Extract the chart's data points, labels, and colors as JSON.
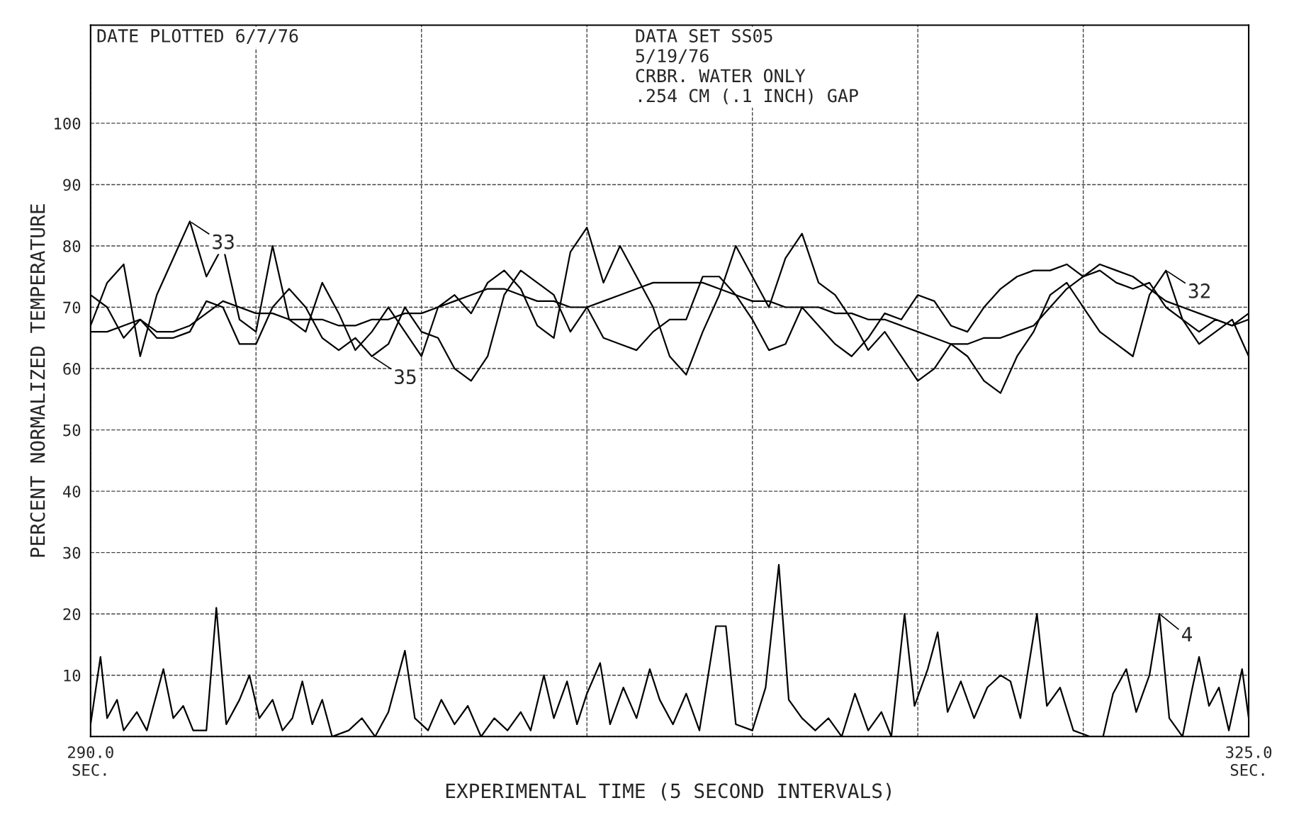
{
  "chart_data": {
    "type": "line",
    "xlabel": "EXPERIMENTAL TIME (5 SECOND INTERVALS)",
    "ylabel": "PERCENT NORMALIZED TEMPERATURE",
    "annotations": [
      "DATE PLOTTED 6/7/76",
      "DATA SET SS05\n5/19/76\nCRBR. WATER ONLY\n.254 CM (.1 INCH) GAP",
      {
        "text": "33",
        "x": 293,
        "y": 84
      },
      {
        "text": "35",
        "x": 298.5,
        "y": 62
      },
      {
        "text": "32",
        "x": 322.5,
        "y": 76
      },
      {
        "text": "4",
        "x": 322.3,
        "y": 20
      }
    ],
    "x": [
      290,
      290.5,
      291,
      291.5,
      292,
      292.5,
      293,
      293.5,
      294,
      294.5,
      295,
      295.5,
      296,
      296.5,
      297,
      297.5,
      298,
      298.5,
      299,
      299.5,
      300,
      300.5,
      301,
      301.5,
      302,
      302.5,
      303,
      303.5,
      304,
      304.5,
      305,
      305.5,
      306,
      306.5,
      307,
      307.5,
      308,
      308.5,
      309,
      309.5,
      310,
      310.5,
      311,
      311.5,
      312,
      312.5,
      313,
      313.5,
      314,
      314.5,
      315,
      315.5,
      316,
      316.5,
      317,
      317.5,
      318,
      318.5,
      319,
      319.5,
      320,
      320.5,
      321,
      321.5,
      322,
      322.5,
      323,
      323.5,
      324,
      324.5,
      325
    ],
    "series": [
      {
        "color": "#000000",
        "values": [
          67,
          74,
          77,
          62,
          72,
          78,
          84,
          75,
          80,
          68,
          66,
          80,
          68,
          66,
          74,
          69,
          63,
          66,
          70,
          66,
          62,
          70,
          72,
          69,
          74,
          76,
          73,
          67,
          65,
          79,
          83,
          74,
          80,
          75,
          70,
          62,
          59,
          66,
          72,
          80,
          75,
          70,
          78,
          82,
          74,
          72,
          68,
          63,
          66,
          62,
          58,
          60,
          64,
          62,
          58,
          56,
          62,
          66,
          72,
          74,
          70,
          66,
          64,
          62,
          72,
          76,
          68,
          64,
          66,
          68,
          62
        ]
      },
      {
        "color": "#000000",
        "values": [
          66,
          66,
          67,
          68,
          66,
          66,
          67,
          69,
          71,
          70,
          69,
          69,
          68,
          68,
          68,
          67,
          67,
          68,
          68,
          69,
          69,
          70,
          71,
          72,
          73,
          73,
          72,
          71,
          71,
          70,
          70,
          71,
          72,
          73,
          74,
          74,
          74,
          74,
          73,
          72,
          71,
          71,
          70,
          70,
          70,
          69,
          69,
          68,
          68,
          67,
          66,
          65,
          64,
          64,
          65,
          65,
          66,
          67,
          70,
          73,
          75,
          77,
          76,
          75,
          73,
          71,
          70,
          69,
          68,
          67,
          68
        ]
      },
      {
        "color": "#000000",
        "values": [
          72,
          70,
          65,
          68,
          65,
          65,
          66,
          71,
          70,
          64,
          64,
          70,
          73,
          70,
          65,
          63,
          65,
          62,
          64,
          70,
          66,
          65,
          60,
          58,
          62,
          72,
          76,
          74,
          72,
          66,
          70,
          65,
          64,
          63,
          66,
          68,
          68,
          75,
          75,
          72,
          68,
          63,
          64,
          70,
          67,
          64,
          62,
          65,
          69,
          68,
          72,
          71,
          67,
          66,
          70,
          73,
          75,
          76,
          76,
          77,
          75,
          76,
          74,
          73,
          74,
          70,
          68,
          66,
          68,
          67,
          69
        ]
      },
      {
        "color": "#000000",
        "x": [
          290.0,
          290.3,
          290.5,
          290.8,
          291.0,
          291.4,
          291.7,
          292.2,
          292.5,
          292.8,
          293.1,
          293.5,
          293.8,
          294.1,
          294.5,
          294.8,
          295.1,
          295.5,
          295.8,
          296.1,
          296.4,
          296.7,
          297.0,
          297.3,
          297.8,
          298.2,
          298.6,
          299.0,
          299.5,
          299.8,
          300.2,
          300.6,
          301.0,
          301.4,
          301.8,
          302.2,
          302.6,
          303.0,
          303.3,
          303.7,
          304.0,
          304.4,
          304.7,
          305.0,
          305.4,
          305.7,
          306.1,
          306.5,
          306.9,
          307.2,
          307.6,
          308.0,
          308.4,
          308.9,
          309.2,
          309.5,
          310.0,
          310.4,
          310.8,
          311.1,
          311.5,
          311.9,
          312.3,
          312.7,
          313.1,
          313.5,
          313.9,
          314.2,
          314.6,
          314.9,
          315.3,
          315.6,
          315.9,
          316.3,
          316.7,
          317.1,
          317.5,
          317.8,
          318.1,
          318.6,
          318.9,
          319.3,
          319.7,
          320.2,
          320.6,
          320.9,
          321.3,
          321.6,
          322.0,
          322.3,
          322.6,
          323.0,
          323.3,
          323.5,
          323.8,
          324.1,
          324.4,
          324.8,
          325.0
        ],
        "values": [
          2,
          13,
          3,
          6,
          1,
          4,
          1,
          11,
          3,
          5,
          1,
          1,
          21,
          2,
          6,
          10,
          3,
          6,
          1,
          3,
          9,
          2,
          6,
          0,
          1,
          3,
          0,
          4,
          14,
          3,
          1,
          6,
          2,
          5,
          0,
          3,
          1,
          4,
          1,
          10,
          3,
          9,
          2,
          7,
          12,
          2,
          8,
          3,
          11,
          6,
          2,
          7,
          1,
          18,
          18,
          2,
          1,
          8,
          28,
          6,
          3,
          1,
          3,
          0,
          7,
          1,
          4,
          0,
          20,
          5,
          11,
          17,
          4,
          9,
          3,
          8,
          10,
          9,
          3,
          20,
          5,
          8,
          1,
          0,
          0,
          7,
          11,
          4,
          10,
          20,
          3,
          0,
          8,
          13,
          5,
          8,
          1,
          11,
          3
        ]
      }
    ],
    "xlim": [
      290,
      325
    ],
    "xticks": [
      {
        "value": 290,
        "label": "290.0\nSEC."
      },
      {
        "value": 295,
        "label": null
      },
      {
        "value": 300,
        "label": null
      },
      {
        "value": 305,
        "label": null
      },
      {
        "value": 310,
        "label": null
      },
      {
        "value": 315,
        "label": null
      },
      {
        "value": 320,
        "label": null
      },
      {
        "value": 325,
        "label": "325.0\nSEC."
      }
    ],
    "ylim": [
      0,
      116
    ],
    "yticks": [
      {
        "value": 0,
        "label": null
      },
      10,
      20,
      30,
      40,
      50,
      60,
      70,
      80,
      90,
      100
    ],
    "grid": true
  }
}
